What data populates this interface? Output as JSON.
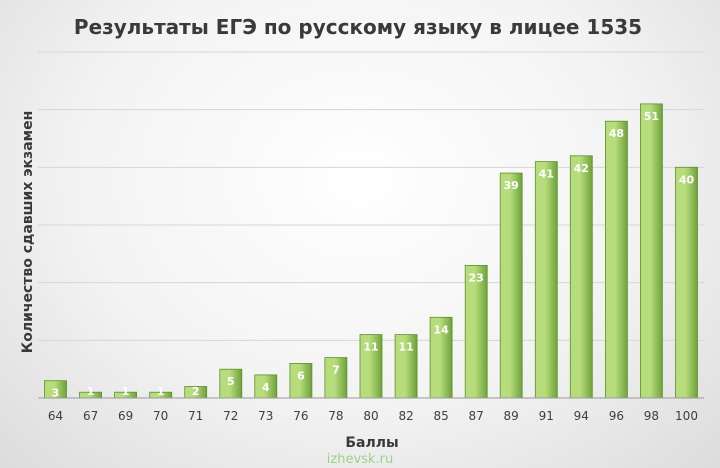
{
  "chart_data": {
    "type": "bar",
    "title": "Результаты ЕГЭ по русскому языку в лицее 1535",
    "xlabel": "Баллы",
    "ylabel": "Количество сдавших экзамен",
    "categories": [
      "64",
      "67",
      "69",
      "70",
      "71",
      "72",
      "73",
      "76",
      "78",
      "80",
      "82",
      "85",
      "87",
      "89",
      "91",
      "94",
      "96",
      "98",
      "100"
    ],
    "values": [
      3,
      1,
      1,
      1,
      2,
      5,
      4,
      6,
      7,
      11,
      11,
      14,
      23,
      39,
      41,
      42,
      48,
      51,
      40
    ],
    "ylim": [
      0,
      60
    ],
    "grid": true,
    "legend": "none",
    "colors": {
      "bar_light": "#b6dc7c",
      "bar_dark": "#6fa23a",
      "bar_border": "#5e8f2c",
      "grid": "#d6d6d6",
      "axis": "#9a9a9a"
    }
  },
  "watermark": "izhevsk.ru"
}
